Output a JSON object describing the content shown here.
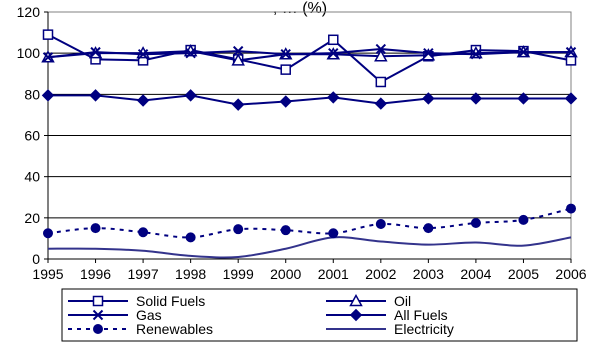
{
  "chart_data": {
    "type": "line",
    "title_partial": ", … (%)",
    "x": [
      "1995",
      "1996",
      "1997",
      "1998",
      "1999",
      "2000",
      "2001",
      "2002",
      "2003",
      "2004",
      "2005",
      "2006"
    ],
    "ylim": [
      0,
      120
    ],
    "yticks": [
      0,
      20,
      40,
      60,
      80,
      100,
      120
    ],
    "grid": "horizontal",
    "legend_position": "bottom",
    "series": [
      {
        "name": "Solid Fuels",
        "color": "#000080",
        "marker": "open-square",
        "dash": "solid",
        "values": [
          109,
          97,
          96.5,
          101.5,
          97,
          92,
          106.5,
          86,
          98.5,
          101.5,
          101,
          96.5
        ]
      },
      {
        "name": "Oil",
        "color": "#000080",
        "marker": "open-triangle",
        "dash": "solid",
        "values": [
          98,
          100,
          100,
          101,
          96.5,
          99.5,
          99.5,
          98.5,
          99,
          100,
          100.5,
          100.5
        ]
      },
      {
        "name": "Gas",
        "color": "#000080",
        "marker": "x",
        "dash": "solid",
        "values": [
          98,
          100.5,
          99.5,
          100,
          101,
          99.5,
          100,
          102,
          100,
          99.5,
          100.5,
          100.5
        ]
      },
      {
        "name": "All Fuels",
        "color": "#000080",
        "marker": "filled-diamond",
        "dash": "solid",
        "values": [
          79.5,
          79.5,
          77,
          79.5,
          75,
          76.5,
          78.5,
          75.5,
          78,
          78,
          78,
          78
        ]
      },
      {
        "name": "Renewables",
        "color": "#000080",
        "marker": "filled-circle",
        "dash": "dashed",
        "values": [
          12.5,
          15,
          13,
          10.5,
          14.5,
          14,
          12.5,
          17,
          15,
          17.5,
          19,
          24.5
        ]
      },
      {
        "name": "Electricity",
        "color": "#33338C",
        "marker": "none",
        "dash": "solid",
        "values": [
          5,
          5,
          4,
          1.5,
          1,
          5,
          10.5,
          8.5,
          7,
          8,
          6.5,
          10.5
        ]
      }
    ]
  }
}
